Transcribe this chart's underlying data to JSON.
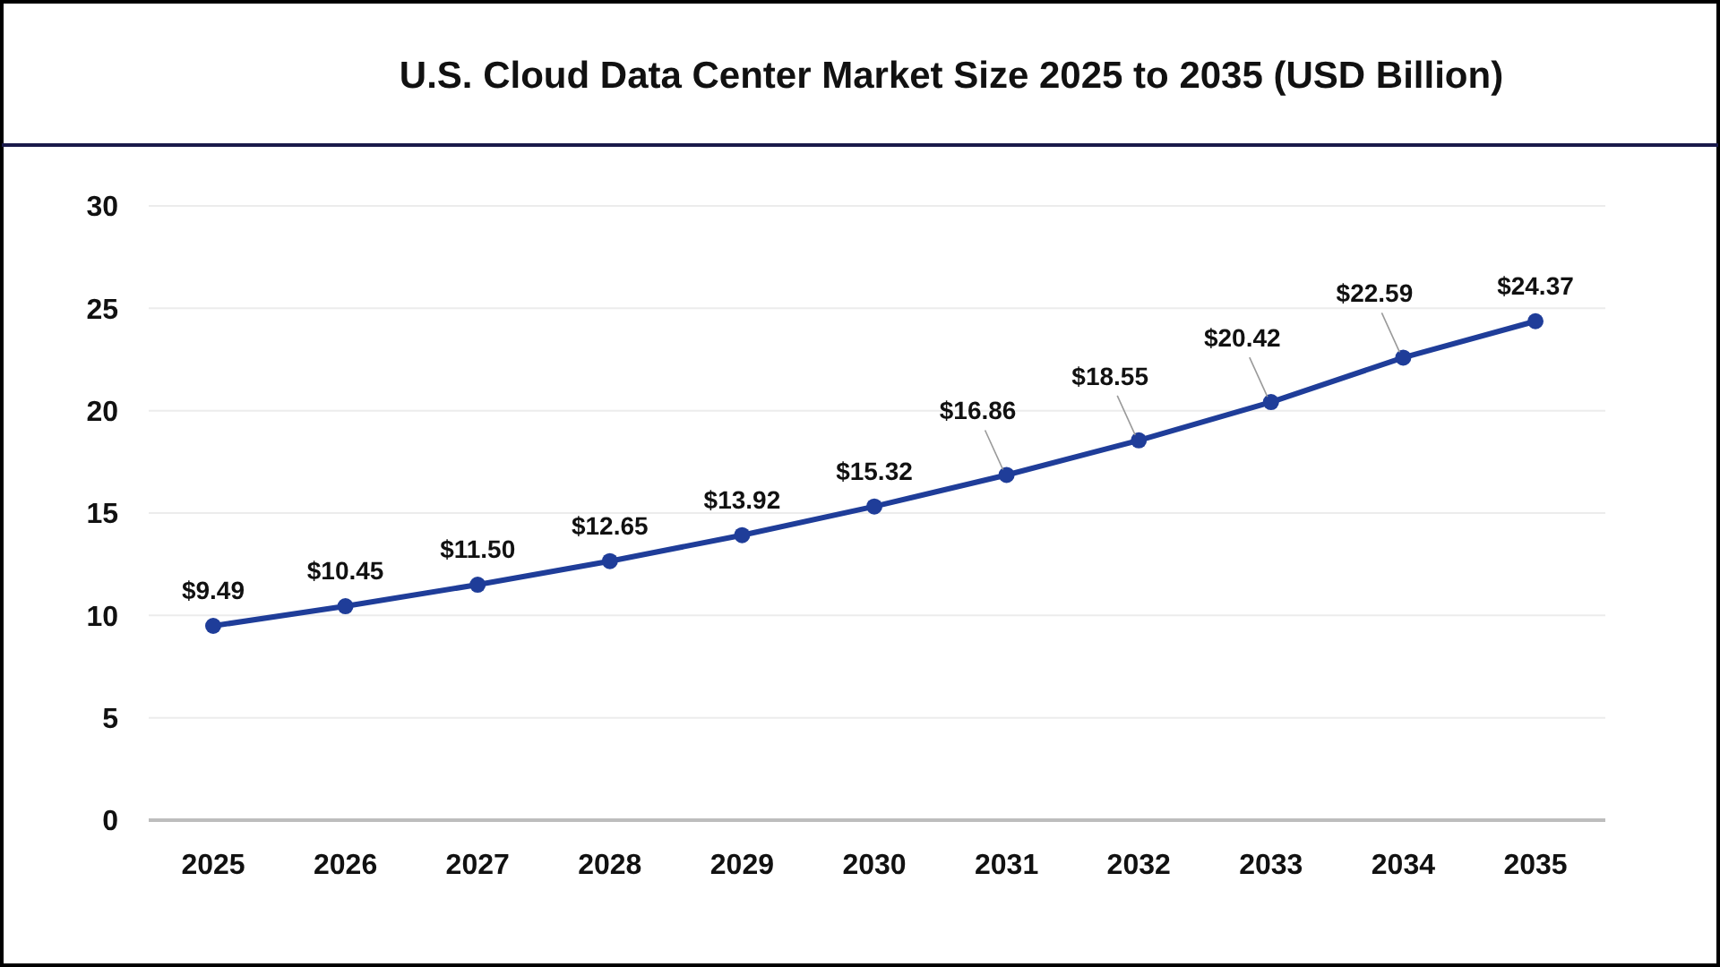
{
  "chart_data": {
    "type": "line",
    "title": "U.S. Cloud Data Center Market Size 2025 to 2035 (USD Billion)",
    "categories": [
      "2025",
      "2026",
      "2027",
      "2028",
      "2029",
      "2030",
      "2031",
      "2032",
      "2033",
      "2034",
      "2035"
    ],
    "series": [
      {
        "color": "#1f3d99",
        "values": [
          9.49,
          10.45,
          11.5,
          12.65,
          13.92,
          15.32,
          16.86,
          18.55,
          20.42,
          22.59,
          24.37
        ],
        "value_labels": [
          "$9.49",
          "$10.45",
          "$11.50",
          "$12.65",
          "$13.92",
          "$15.32",
          "$16.86",
          "$18.55",
          "$20.42",
          "$22.59",
          "$24.37"
        ]
      }
    ],
    "ylim": [
      0,
      30
    ],
    "yticks": [
      0,
      5,
      10,
      15,
      20,
      25,
      30
    ],
    "grid": "y",
    "marker": "circle",
    "line_style": "solid"
  }
}
